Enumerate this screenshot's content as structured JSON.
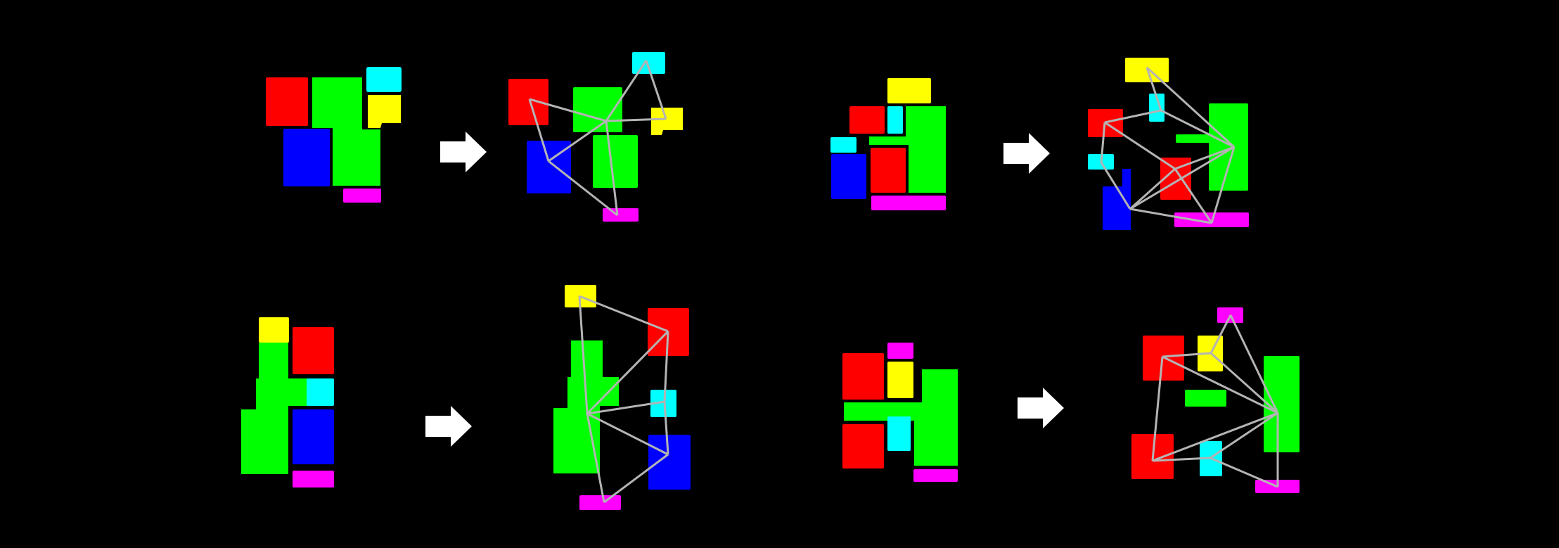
{
  "colors": {
    "background": "#000000",
    "red": "#ff0000",
    "green": "#00ff00",
    "blue": "#0000ff",
    "yellow": "#ffff00",
    "cyan": "#00ffff",
    "magenta": "#ff00ff",
    "edge": "#b4b4b4",
    "arrow": "#ffffff"
  },
  "panels": [
    {
      "name": "example-1",
      "layout": "before",
      "graph": "after",
      "arrow": "right-arrow-icon"
    },
    {
      "name": "example-2",
      "layout": "before",
      "graph": "after",
      "arrow": "right-arrow-icon"
    },
    {
      "name": "example-3",
      "layout": "before",
      "graph": "after",
      "arrow": "right-arrow-icon"
    },
    {
      "name": "example-4",
      "layout": "before",
      "graph": "after",
      "arrow": "right-arrow-icon"
    }
  ]
}
